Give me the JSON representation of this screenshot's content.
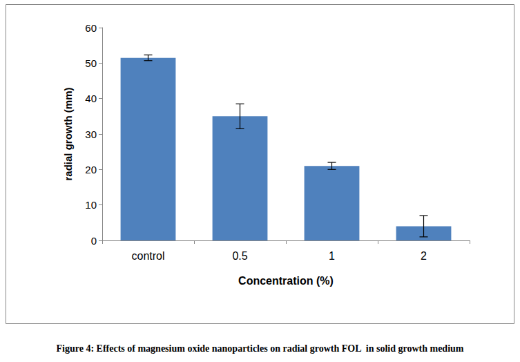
{
  "chart_data": {
    "type": "bar",
    "title": "Figure 4: Effects of magnesium oxide nanoparticles on radial growth FOL  in solid growth medium",
    "x_label": "Concentration (%)",
    "y_label": "radial growth (mm)",
    "categories": [
      "control",
      "0.5",
      "1",
      "2"
    ],
    "values": [
      51.5,
      35,
      21,
      4
    ],
    "errors": [
      0.8,
      3.5,
      1,
      3
    ],
    "color": "#4f81bd",
    "ylim": [
      0,
      60
    ],
    "yticks": [
      0,
      10,
      20,
      30,
      40,
      50,
      60
    ],
    "grid": false
  }
}
